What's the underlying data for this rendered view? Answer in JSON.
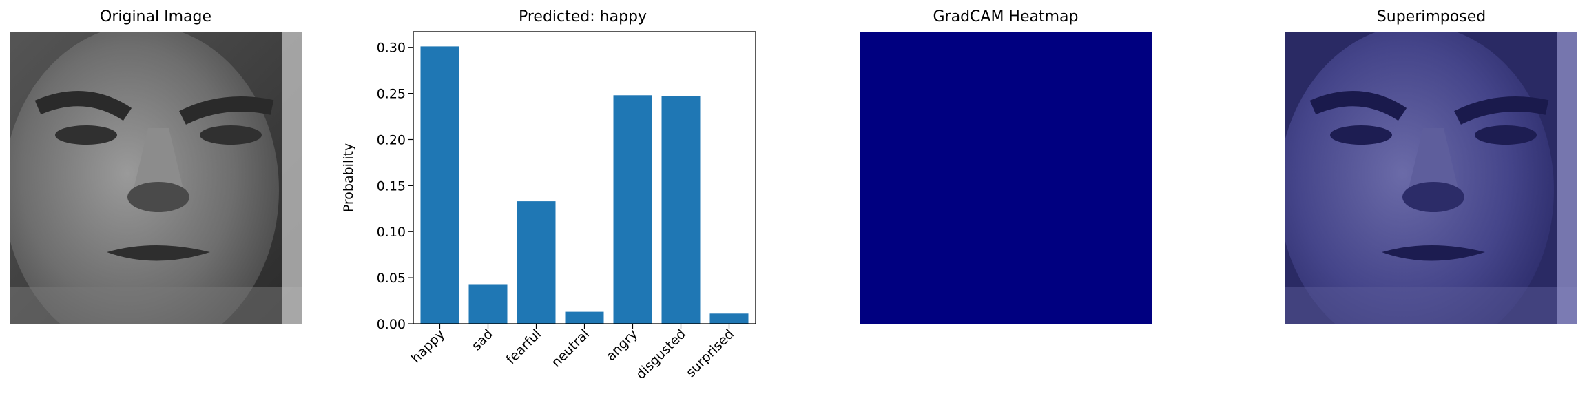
{
  "titles": {
    "original": "Original Image",
    "chart": "Predicted: happy",
    "heatmap": "GradCAM Heatmap",
    "superimposed": "Superimposed"
  },
  "colors": {
    "bar": "#1f77b4",
    "heatmap": "#000080",
    "superimpose_tint": "#3c3c8c"
  },
  "chart_data": {
    "type": "bar",
    "title": "Predicted: happy",
    "xlabel": "",
    "ylabel": "Probability",
    "categories": [
      "happy",
      "sad",
      "fearful",
      "neutral",
      "angry",
      "disgusted",
      "surprised"
    ],
    "values": [
      0.301,
      0.043,
      0.133,
      0.013,
      0.248,
      0.247,
      0.011
    ],
    "ylim": [
      0,
      0.317
    ],
    "yticks": [
      0.0,
      0.05,
      0.1,
      0.15,
      0.2,
      0.25,
      0.3
    ],
    "ytick_labels": [
      "0.00",
      "0.05",
      "0.10",
      "0.15",
      "0.20",
      "0.25",
      "0.30"
    ],
    "grid": false,
    "legend": "none"
  }
}
